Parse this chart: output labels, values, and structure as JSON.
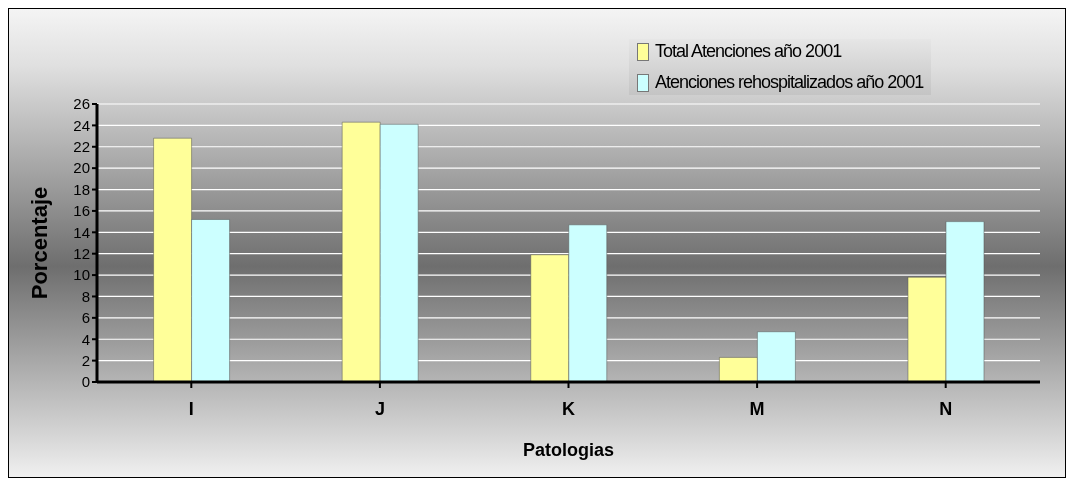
{
  "chart_data": {
    "type": "bar",
    "xlabel": "Patologias",
    "ylabel": "Porcentaje",
    "categories": [
      "I",
      "J",
      "K",
      "M",
      "N"
    ],
    "series": [
      {
        "name": "Total Atenciones año 2001",
        "color": "#ffff99",
        "values": [
          22.8,
          24.3,
          11.9,
          2.3,
          9.8
        ]
      },
      {
        "name": "Atenciones rehospitalizados año 2001",
        "color": "#ccffff",
        "values": [
          15.2,
          24.1,
          14.7,
          4.7,
          15.0
        ]
      }
    ],
    "ylim": [
      0,
      26
    ],
    "yticks": [
      0,
      2,
      4,
      6,
      8,
      10,
      12,
      14,
      16,
      18,
      20,
      22,
      24,
      26
    ],
    "grid": "y",
    "legend": "top right"
  }
}
